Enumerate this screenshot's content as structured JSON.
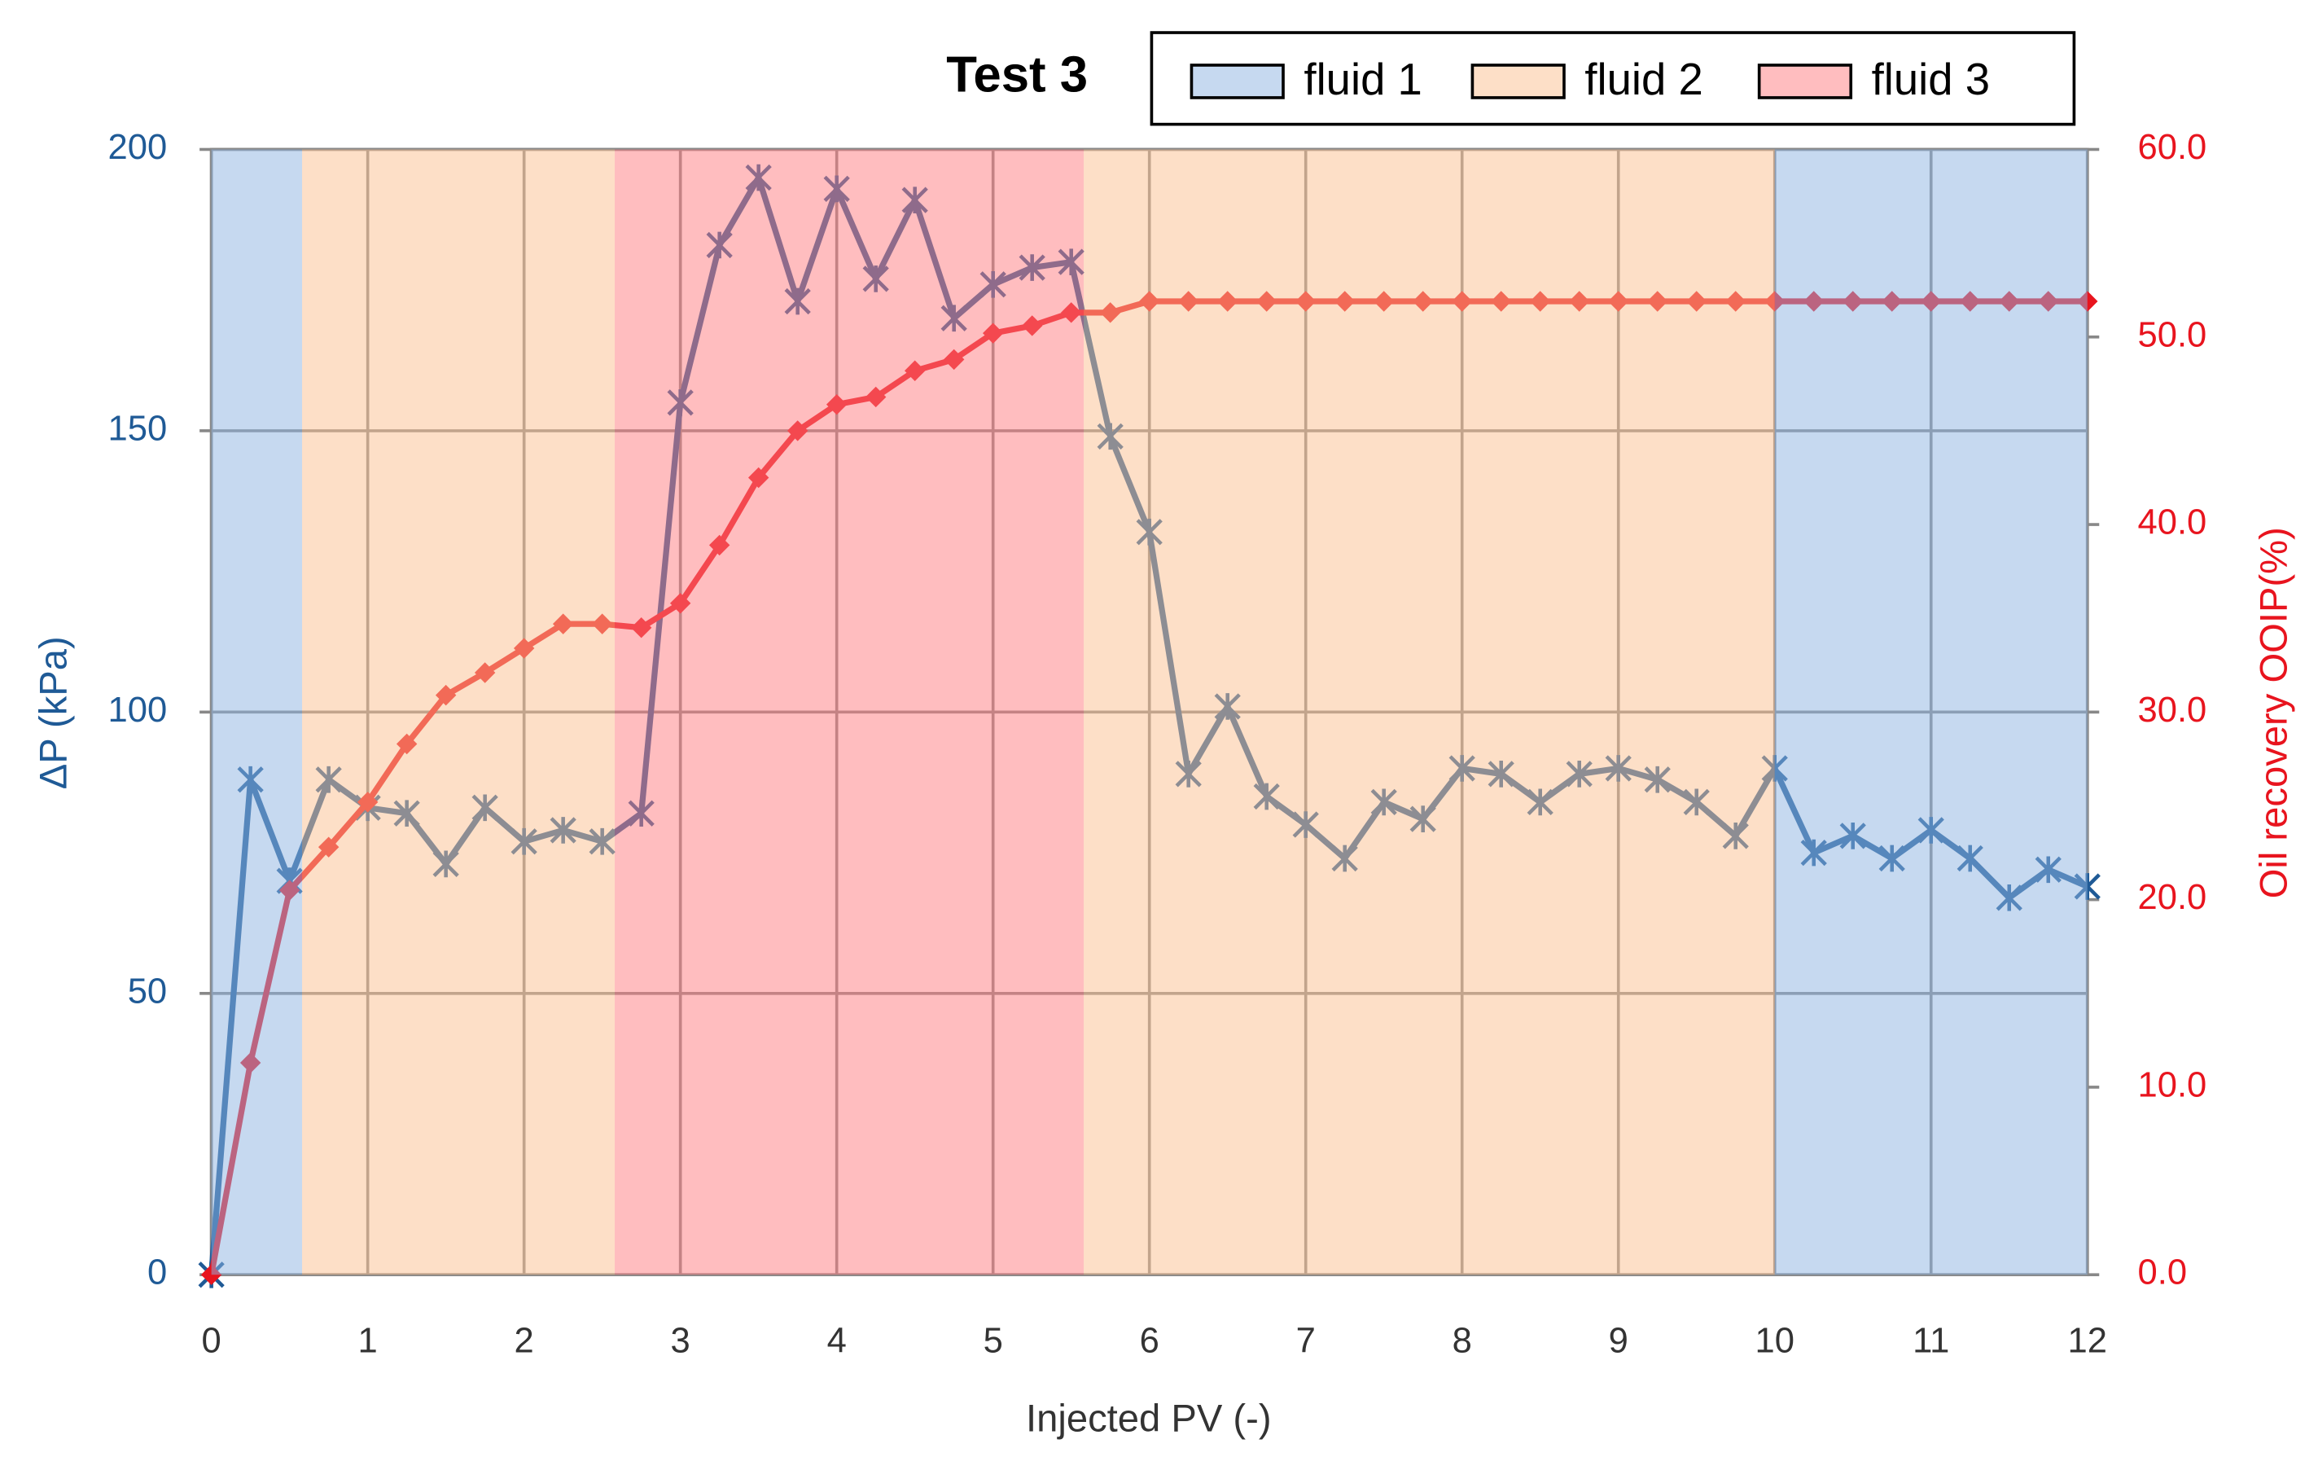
{
  "chart_data": {
    "type": "line",
    "title": "Test 3",
    "x_label": "Injected PV (-)",
    "y_label": "ΔP (kPa)",
    "y2_label": "Oil recovery OOIP(%)",
    "xlim": [
      0,
      12
    ],
    "xticks": [
      0,
      1,
      2,
      3,
      4,
      5,
      6,
      7,
      8,
      9,
      10,
      11,
      12
    ],
    "ylim": [
      0,
      200
    ],
    "yticks": [
      0,
      50,
      100,
      150,
      200
    ],
    "y2lim": [
      0,
      60
    ],
    "y2ticks": [
      {
        "value": 0,
        "label": "0.0"
      },
      {
        "value": 10,
        "label": "10.0"
      },
      {
        "value": 20,
        "label": "20.0"
      },
      {
        "value": 30,
        "label": "30.0"
      },
      {
        "value": 40,
        "label": "40.0"
      },
      {
        "value": 50,
        "label": "50.0"
      },
      {
        "value": 60,
        "label": "60.0"
      }
    ],
    "grid": true,
    "fluids": [
      {
        "name": "fluid 1",
        "color": "#8db4e2",
        "ranges": [
          [
            0,
            0.58
          ],
          [
            10,
            12
          ]
        ]
      },
      {
        "name": "fluid 2",
        "color": "#fbbf8f",
        "ranges": [
          [
            0.58,
            2.58
          ],
          [
            5.58,
            10
          ]
        ]
      },
      {
        "name": "fluid 3",
        "color": "#ff7c80",
        "ranges": [
          [
            2.58,
            5.58
          ]
        ]
      }
    ],
    "x": [
      0,
      0.25,
      0.5,
      0.75,
      1,
      1.25,
      1.5,
      1.75,
      2,
      2.25,
      2.5,
      2.75,
      3,
      3.25,
      3.5,
      3.75,
      4,
      4.25,
      4.5,
      4.75,
      5,
      5.25,
      5.5,
      5.75,
      6,
      6.25,
      6.5,
      6.75,
      7,
      7.25,
      7.5,
      7.75,
      8,
      8.25,
      8.5,
      8.75,
      9,
      9.25,
      9.5,
      9.75,
      10,
      10.25,
      10.5,
      10.75,
      11,
      11.25,
      11.5,
      11.75,
      12
    ],
    "series": [
      {
        "color": "#1f5a96",
        "marker": "x",
        "values": [
          0,
          88,
          70,
          88,
          83,
          82,
          73,
          83,
          77,
          79,
          77,
          82,
          155,
          183,
          195,
          173,
          193,
          177,
          191,
          170,
          176,
          179,
          180,
          149,
          132,
          89,
          101,
          85,
          80,
          74,
          84,
          81,
          90,
          89,
          84,
          89,
          90,
          88,
          84,
          78,
          90,
          75,
          78,
          74,
          79,
          74,
          67,
          72,
          69
        ]
      },
      {
        "color": "#e8141e",
        "marker": "diamond",
        "axis": "y2",
        "values": [
          0,
          11.3,
          20.5,
          22.8,
          25.2,
          28.3,
          30.9,
          32.1,
          33.4,
          34.7,
          34.7,
          34.5,
          35.8,
          38.9,
          42.5,
          45.0,
          46.4,
          46.8,
          48.2,
          48.8,
          50.2,
          50.6,
          51.3,
          51.3,
          51.9,
          51.9,
          51.9,
          51.9,
          51.9,
          51.9,
          51.9,
          51.9,
          51.9,
          51.9,
          51.9,
          51.9,
          51.9,
          51.9,
          51.9,
          51.9,
          51.9,
          51.9,
          51.9,
          51.9,
          51.9,
          51.9,
          51.9,
          51.9,
          51.9
        ]
      }
    ]
  }
}
